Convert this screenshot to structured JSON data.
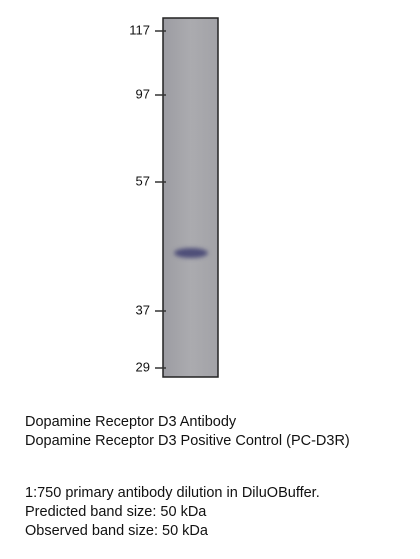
{
  "blot": {
    "markers": [
      "117",
      "97",
      "57",
      "37",
      "29"
    ]
  },
  "caption": {
    "lines": [
      "Dopamine Receptor D3 Antibody",
      "Dopamine Receptor D3 Positive Control (PC-D3R)",
      "1:750 primary antibody dilution in DiluOBuffer.",
      "Predicted band size: 50 kDa",
      "Observed band size: 50 kDa"
    ]
  }
}
